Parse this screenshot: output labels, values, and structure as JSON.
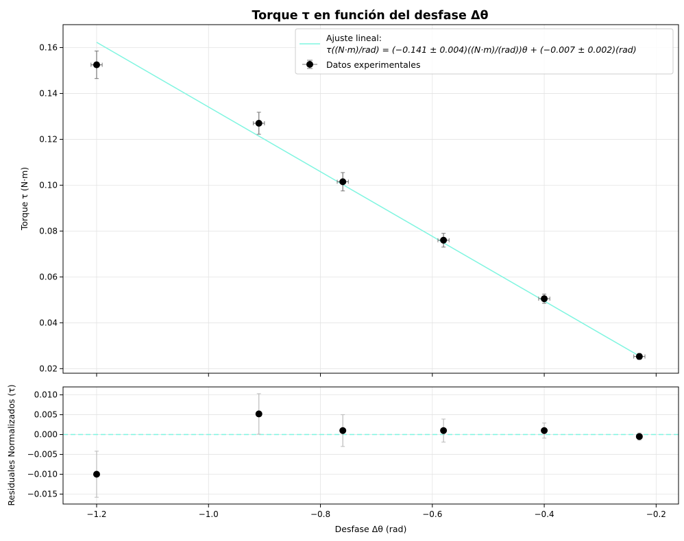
{
  "chart_data": [
    {
      "type": "scatter",
      "panel": "main",
      "title": "Torque τ en función del desfase Δθ",
      "xlabel": "",
      "ylabel": "Torque τ (N·m)",
      "xlim": [
        -1.26,
        -0.16
      ],
      "ylim": [
        0.018,
        0.17
      ],
      "xticks": [
        -1.2,
        -1.0,
        -0.8,
        -0.6,
        -0.4,
        -0.2
      ],
      "yticks": [
        0.02,
        0.04,
        0.06,
        0.08,
        0.1,
        0.12,
        0.14,
        0.16
      ],
      "ytick_labels": [
        "0.02",
        "0.04",
        "0.06",
        "0.08",
        "0.10",
        "0.12",
        "0.14",
        "0.16"
      ],
      "grid": true,
      "legend_position": "top-right",
      "series": [
        {
          "name": "Datos experimentales",
          "kind": "errorbar",
          "color": "#000000",
          "errorbar_color": "#777777",
          "x": [
            -1.2,
            -0.91,
            -0.76,
            -0.58,
            -0.4,
            -0.23
          ],
          "y": [
            0.1525,
            0.127,
            0.1015,
            0.076,
            0.0505,
            0.0253
          ],
          "xerr": [
            0.01,
            0.01,
            0.01,
            0.01,
            0.01,
            0.01
          ],
          "yerr": [
            0.006,
            0.0048,
            0.004,
            0.003,
            0.002,
            0.0013
          ]
        },
        {
          "name": "Ajuste lineal:",
          "name_line2": "τ((N·m)/rad) = (−0.141 ± 0.004)((N·m)/(rad))θ + (−0.007 ± 0.002)(rad)",
          "kind": "line",
          "color": "#7ff5e0",
          "x": [
            -1.2,
            -0.23
          ],
          "y": [
            0.1623,
            0.0255
          ]
        }
      ]
    },
    {
      "type": "scatter",
      "panel": "residuals",
      "xlabel": "Desfase Δθ (rad)",
      "ylabel": "Residuales Normalizados (τ)",
      "xlim": [
        -1.26,
        -0.16
      ],
      "ylim": [
        -0.0175,
        0.012
      ],
      "xticks": [
        -1.2,
        -1.0,
        -0.8,
        -0.6,
        -0.4,
        -0.2
      ],
      "xtick_labels": [
        "−1.2",
        "−1.0",
        "−0.8",
        "−0.6",
        "−0.4",
        "−0.2"
      ],
      "yticks": [
        -0.015,
        -0.01,
        -0.005,
        0.0,
        0.005,
        0.01
      ],
      "ytick_labels": [
        "−0.015",
        "−0.010",
        "−0.005",
        "0.000",
        "0.005",
        "0.010"
      ],
      "grid": true,
      "zero_line_color": "#7ff5e0",
      "series": [
        {
          "kind": "errorbar",
          "color": "#000000",
          "errorbar_color": "#bbbbbb",
          "x": [
            -1.2,
            -0.91,
            -0.76,
            -0.58,
            -0.4,
            -0.23
          ],
          "y": [
            -0.01,
            0.0052,
            0.001,
            0.001,
            0.001,
            -0.0005
          ],
          "yerr": [
            0.0058,
            0.0051,
            0.004,
            0.0029,
            0.0019,
            0.0009
          ]
        }
      ]
    }
  ]
}
